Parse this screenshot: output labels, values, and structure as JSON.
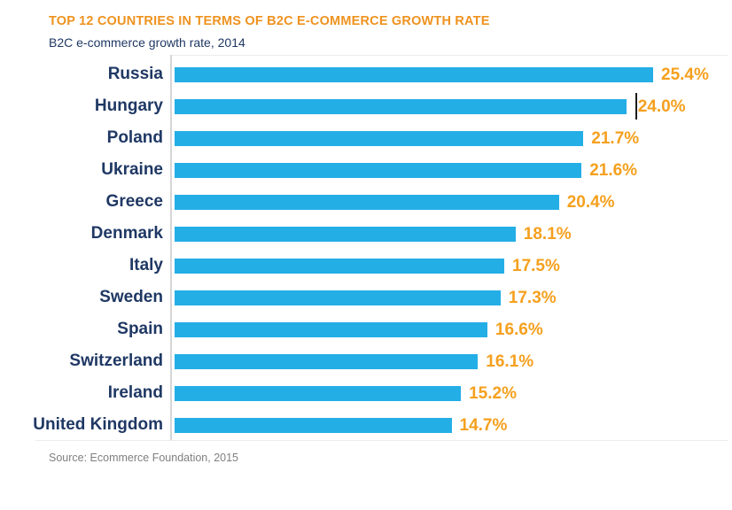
{
  "chart_data": {
    "type": "bar",
    "orientation": "horizontal",
    "title": "TOP 12 COUNTRIES IN TERMS OF B2C E-COMMERCE GROWTH RATE",
    "subtitle": "B2C e-commerce growth rate, 2014",
    "categories": [
      "Russia",
      "Hungary",
      "Poland",
      "Ukraine",
      "Greece",
      "Denmark",
      "Italy",
      "Sweden",
      "Spain",
      "Switzerland",
      "Ireland",
      "United Kingdom"
    ],
    "values": [
      25.4,
      24.0,
      21.7,
      21.6,
      20.4,
      18.1,
      17.5,
      17.3,
      16.6,
      16.1,
      15.2,
      14.7
    ],
    "value_labels": [
      "25.4%",
      "24.0%",
      "21.7%",
      "21.6%",
      "20.4%",
      "18.1%",
      "17.5%",
      "17.3%",
      "16.6%",
      "16.1%",
      "15.2%",
      "14.7%"
    ],
    "xlim": [
      0,
      26
    ],
    "grid": false,
    "legend": null,
    "xlabel": "",
    "ylabel": "",
    "bar_color": "#24AEE6",
    "value_label_color": "#F5A01E",
    "category_label_color": "#1F3864"
  },
  "footer": {
    "source": "Source: Ecommerce Foundation, 2015"
  },
  "artifacts": {
    "text_cursor_row": "Hungary"
  },
  "colors": {
    "title": "#EE921F",
    "subtitle": "#1F3864",
    "axis_line": "#D6D6D6",
    "source_text": "#7F7F7F",
    "background": "#FFFFFF"
  }
}
